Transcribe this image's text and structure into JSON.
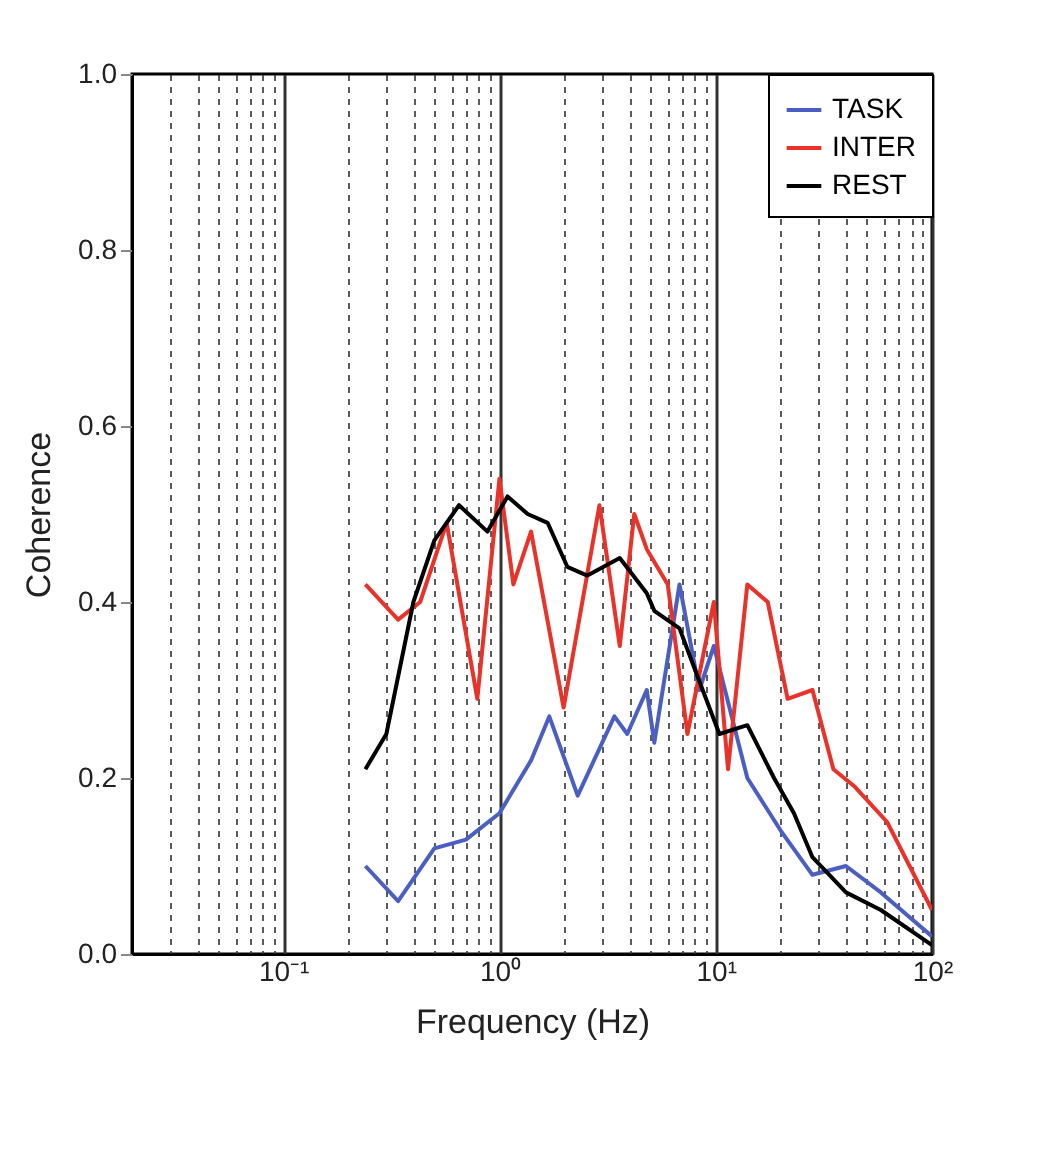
{
  "chart_data": {
    "type": "line",
    "xlabel": "Frequency (Hz)",
    "ylabel": "Coherence",
    "log": "x",
    "grid": "x",
    "legend": "top right",
    "line_style": "solid",
    "xlim": [
      0.02,
      100
    ],
    "ylim": [
      0,
      1
    ],
    "xticks": [
      {
        "value": 0.02,
        "label": null
      },
      {
        "value": 0.03,
        "label": null
      },
      {
        "value": 0.04,
        "label": null
      },
      {
        "value": 0.05,
        "label": null
      },
      {
        "value": 0.06,
        "label": null
      },
      {
        "value": 0.07,
        "label": null
      },
      {
        "value": 0.08,
        "label": null
      },
      {
        "value": 0.09,
        "label": null
      },
      {
        "value": 0.1,
        "label": "10⁻¹"
      },
      {
        "value": 0.2,
        "label": null
      },
      {
        "value": 0.3,
        "label": null
      },
      {
        "value": 0.4,
        "label": null
      },
      {
        "value": 0.5,
        "label": null
      },
      {
        "value": 0.6,
        "label": null
      },
      {
        "value": 0.7,
        "label": null
      },
      {
        "value": 0.8,
        "label": null
      },
      {
        "value": 0.9,
        "label": null
      },
      {
        "value": 1,
        "label": "10⁰"
      },
      {
        "value": 2,
        "label": null
      },
      {
        "value": 3,
        "label": null
      },
      {
        "value": 4,
        "label": null
      },
      {
        "value": 5,
        "label": null
      },
      {
        "value": 6,
        "label": null
      },
      {
        "value": 7,
        "label": null
      },
      {
        "value": 8,
        "label": null
      },
      {
        "value": 9,
        "label": null
      },
      {
        "value": 10,
        "label": "10¹"
      },
      {
        "value": 20,
        "label": null
      },
      {
        "value": 30,
        "label": null
      },
      {
        "value": 40,
        "label": null
      },
      {
        "value": 50,
        "label": null
      },
      {
        "value": 60,
        "label": null
      },
      {
        "value": 70,
        "label": null
      },
      {
        "value": 80,
        "label": null
      },
      {
        "value": 90,
        "label": null
      },
      {
        "value": 100,
        "label": "10²"
      }
    ],
    "yticks": [
      {
        "value": 0,
        "label": "0.0"
      },
      0.2,
      0.4,
      0.6,
      0.8,
      {
        "value": 1,
        "label": "1.0"
      }
    ],
    "series": [
      {
        "name": "TASK",
        "color": "#4a5fc1",
        "x": [
          0.24,
          0.34,
          0.5,
          0.7,
          1,
          1.4,
          1.7,
          2.3,
          3.4,
          3.9,
          4.8,
          5.2,
          6.8,
          8.4,
          9.8,
          14,
          20,
          28,
          40,
          58,
          100
        ],
        "values": [
          0.1,
          0.06,
          0.12,
          0.13,
          0.16,
          0.22,
          0.27,
          0.18,
          0.27,
          0.25,
          0.3,
          0.24,
          0.42,
          0.3,
          0.35,
          0.2,
          0.14,
          0.09,
          0.1,
          0.07,
          0.02
        ]
      },
      {
        "name": "INTER",
        "color": "#e8322a",
        "x": [
          0.24,
          0.34,
          0.43,
          0.57,
          0.79,
          1,
          1.16,
          1.4,
          1.98,
          2.9,
          3.6,
          4.2,
          4.8,
          6,
          7.4,
          9.8,
          11.4,
          14,
          17.4,
          21.5,
          28,
          35,
          44,
          62,
          100
        ],
        "values": [
          0.42,
          0.38,
          0.4,
          0.49,
          0.29,
          0.54,
          0.42,
          0.48,
          0.28,
          0.51,
          0.35,
          0.5,
          0.46,
          0.42,
          0.25,
          0.4,
          0.21,
          0.42,
          0.4,
          0.29,
          0.3,
          0.21,
          0.19,
          0.15,
          0.05
        ]
      },
      {
        "name": "REST",
        "color": "#000000",
        "x": [
          0.24,
          0.3,
          0.4,
          0.5,
          0.65,
          0.88,
          1.09,
          1.35,
          1.67,
          2.06,
          2.55,
          3.6,
          4.8,
          5.2,
          6.8,
          8.4,
          10.4,
          14,
          18.6,
          23,
          28,
          40,
          58,
          100
        ],
        "values": [
          0.21,
          0.25,
          0.4,
          0.47,
          0.51,
          0.48,
          0.52,
          0.5,
          0.49,
          0.44,
          0.43,
          0.45,
          0.41,
          0.39,
          0.37,
          0.31,
          0.25,
          0.26,
          0.2,
          0.16,
          0.11,
          0.07,
          0.05,
          0.01
        ]
      }
    ]
  }
}
